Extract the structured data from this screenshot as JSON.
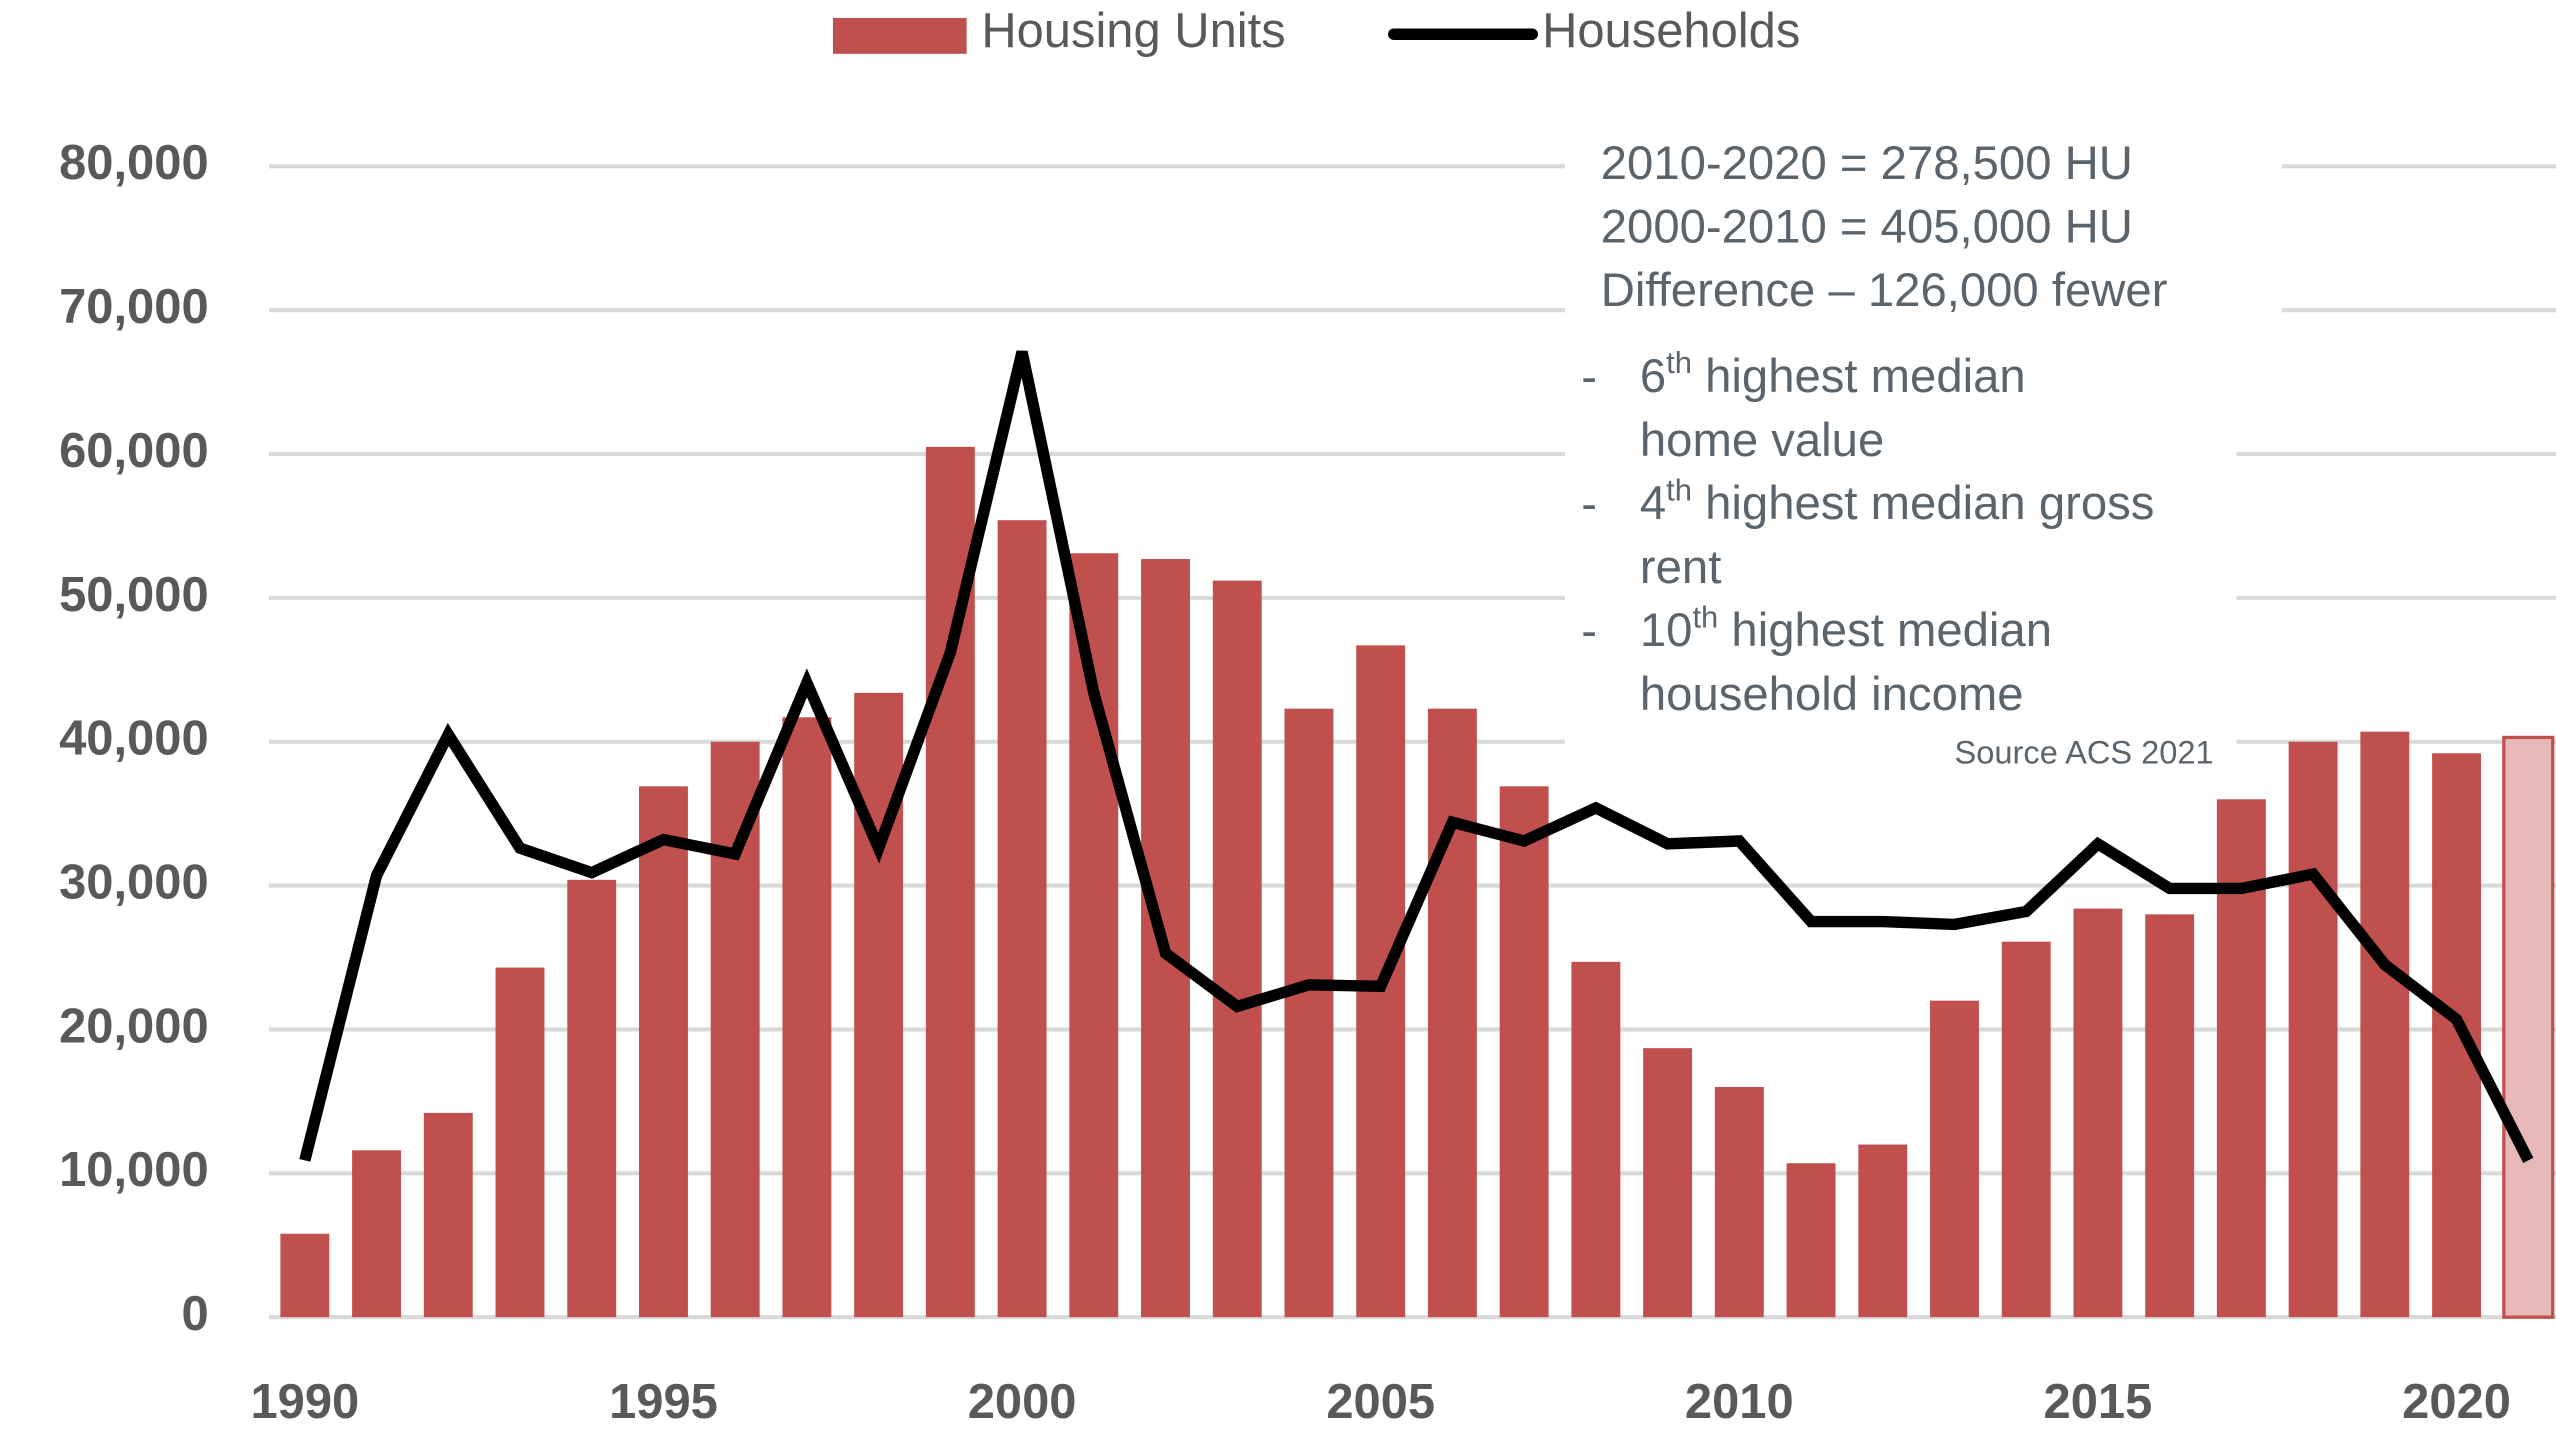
{
  "chart_data": {
    "type": "bar_line",
    "categories": [
      "1990",
      null,
      null,
      null,
      null,
      "1995",
      null,
      null,
      null,
      null,
      "2000",
      null,
      null,
      null,
      null,
      "2005",
      null,
      null,
      null,
      null,
      "2010",
      null,
      null,
      null,
      null,
      "2015",
      null,
      null,
      null,
      null,
      "2020",
      null
    ],
    "series": [
      {
        "name": "Housing Units",
        "type": "bar",
        "color": "#c0504d",
        "colors": [
          "#c0504d",
          "#c0504d",
          "#c0504d",
          "#c0504d",
          "#c0504d",
          "#c0504d",
          "#c0504d",
          "#c0504d",
          "#c0504d",
          "#c0504d",
          "#c0504d",
          "#c0504d",
          "#c0504d",
          "#c0504d",
          "#c0504d",
          "#c0504d",
          "#c0504d",
          "#c0504d",
          "#c0504d",
          "#c0504d",
          "#c0504d",
          "#c0504d",
          "#c0504d",
          "#c0504d",
          "#c0504d",
          "#c0504d",
          "#c0504d",
          "#c0504d",
          "#c0504d",
          "#c0504d",
          "#c0504d",
          "#e6b9b8"
        ],
        "values": [
          5800,
          11600,
          14200,
          24300,
          30400,
          36900,
          40000,
          41700,
          43400,
          60500,
          55400,
          53100,
          52700,
          51200,
          42300,
          46700,
          42300,
          36900,
          24700,
          18700,
          16000,
          10700,
          12000,
          22000,
          26100,
          28400,
          28000,
          36000,
          40000,
          40700,
          39200,
          40300
        ]
      },
      {
        "name": "Households",
        "type": "line",
        "color": "#000000",
        "values": [
          10900,
          30700,
          40500,
          32600,
          30900,
          33200,
          32200,
          44100,
          32600,
          46200,
          67100,
          43400,
          25300,
          21600,
          23100,
          23000,
          34400,
          33100,
          35400,
          32900,
          33100,
          27500,
          27500,
          27300,
          28200,
          32900,
          29800,
          29800,
          30800,
          24500,
          20700,
          10900
        ]
      }
    ],
    "ylim": [
      0,
      80000
    ],
    "yticks": [
      0,
      {
        "value": 10000,
        "label": "10,000"
      },
      {
        "value": 20000,
        "label": "20,000"
      },
      {
        "value": 30000,
        "label": "30,000"
      },
      {
        "value": 40000,
        "label": "40,000"
      },
      {
        "value": 50000,
        "label": "50,000"
      },
      {
        "value": 60000,
        "label": "60,000"
      },
      {
        "value": 70000,
        "label": "70,000"
      },
      {
        "value": 80000,
        "label": "80,000"
      }
    ],
    "grid": true,
    "legend": "top",
    "annotation": {
      "summary": [
        "2010-2020 = 278,500 HU",
        "2000-2010 = 405,000 HU",
        "Difference – 126,000 fewer"
      ],
      "bullet": "-",
      "bullets": [
        {
          "ordinal": "6",
          "suffix": "th",
          "lines": [
            "highest median",
            "home value"
          ]
        },
        {
          "ordinal": "4",
          "suffix": "th",
          "lines": [
            "highest median gross",
            "rent"
          ]
        },
        {
          "ordinal": "10",
          "suffix": "th",
          "lines": [
            "highest median",
            "household income"
          ]
        }
      ],
      "source": "Source ACS 2021"
    }
  }
}
